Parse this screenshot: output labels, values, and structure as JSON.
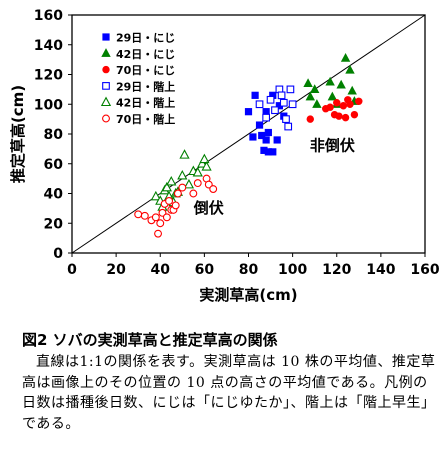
{
  "chart_data": {
    "type": "scatter",
    "xlabel": "実測草高(cm)",
    "ylabel": "推定草高(cm)",
    "xlim": [
      0,
      160
    ],
    "ylim": [
      0,
      160
    ],
    "xticks": [
      0,
      20,
      40,
      60,
      80,
      100,
      120,
      140,
      160
    ],
    "yticks": [
      0,
      20,
      40,
      60,
      80,
      100,
      120,
      140,
      160
    ],
    "grid": false,
    "legend_position": "top-left",
    "reference_line": {
      "slope": 1,
      "intercept": 0
    },
    "annotations": [
      {
        "text": "非倒伏",
        "x": 118,
        "y": 69
      },
      {
        "text": "倒伏",
        "x": 62,
        "y": 27
      }
    ],
    "series": [
      {
        "name": "29日・にじ",
        "marker": "square",
        "filled": true,
        "color": "#0000ff",
        "points": [
          [
            80,
            95
          ],
          [
            82,
            78
          ],
          [
            83,
            106
          ],
          [
            85,
            86
          ],
          [
            86,
            79
          ],
          [
            87,
            69
          ],
          [
            88,
            95
          ],
          [
            88,
            76
          ],
          [
            89,
            81
          ],
          [
            89,
            68
          ],
          [
            91,
            68
          ],
          [
            91,
            106
          ],
          [
            93,
            76
          ],
          [
            94,
            99
          ],
          [
            96,
            92
          ]
        ]
      },
      {
        "name": "42日・にじ",
        "marker": "triangle",
        "filled": true,
        "color": "#008000",
        "points": [
          [
            107,
            114
          ],
          [
            108,
            105
          ],
          [
            110,
            110
          ],
          [
            111,
            100
          ],
          [
            117,
            115
          ],
          [
            118,
            105
          ],
          [
            120,
            100
          ],
          [
            122,
            113
          ],
          [
            124,
            131
          ],
          [
            126,
            123
          ],
          [
            127,
            109
          ],
          [
            128,
            102
          ]
        ]
      },
      {
        "name": "70日・にじ",
        "marker": "circle",
        "filled": true,
        "color": "#ff0000",
        "points": [
          [
            108,
            90
          ],
          [
            115,
            97
          ],
          [
            117,
            98
          ],
          [
            119,
            93
          ],
          [
            120,
            101
          ],
          [
            121,
            92
          ],
          [
            123,
            99
          ],
          [
            124,
            91
          ],
          [
            125,
            103
          ],
          [
            126,
            100
          ],
          [
            128,
            93
          ],
          [
            130,
            102
          ]
        ]
      },
      {
        "name": "29日・階上",
        "marker": "square",
        "filled": false,
        "color": "#0000ff",
        "points": [
          [
            85,
            100
          ],
          [
            88,
            91
          ],
          [
            90,
            103
          ],
          [
            92,
            96
          ],
          [
            94,
            110
          ],
          [
            95,
            106
          ],
          [
            96,
            101
          ],
          [
            97,
            90
          ],
          [
            98,
            85
          ],
          [
            99,
            110
          ],
          [
            100,
            100
          ]
        ]
      },
      {
        "name": "42日・階上",
        "marker": "triangle",
        "filled": false,
        "color": "#008000",
        "points": [
          [
            38,
            38
          ],
          [
            40,
            35
          ],
          [
            41,
            31
          ],
          [
            42,
            42
          ],
          [
            43,
            44
          ],
          [
            44,
            38
          ],
          [
            45,
            48
          ],
          [
            46,
            34
          ],
          [
            47,
            40
          ],
          [
            48,
            41
          ],
          [
            50,
            52
          ],
          [
            51,
            66
          ],
          [
            53,
            46
          ],
          [
            55,
            55
          ],
          [
            57,
            54
          ],
          [
            59,
            60
          ],
          [
            60,
            63
          ],
          [
            61,
            58
          ]
        ]
      },
      {
        "name": "70日・階上",
        "marker": "circle",
        "filled": false,
        "color": "#ff0000",
        "points": [
          [
            30,
            26
          ],
          [
            33,
            25
          ],
          [
            36,
            22
          ],
          [
            38,
            24
          ],
          [
            39,
            13
          ],
          [
            40,
            20
          ],
          [
            41,
            27
          ],
          [
            42,
            33
          ],
          [
            43,
            24
          ],
          [
            44,
            35
          ],
          [
            45,
            29
          ],
          [
            46,
            29
          ],
          [
            47,
            32
          ],
          [
            48,
            40
          ],
          [
            50,
            44
          ],
          [
            55,
            40
          ],
          [
            57,
            47
          ],
          [
            61,
            50
          ],
          [
            62,
            46
          ],
          [
            64,
            43
          ]
        ]
      }
    ]
  },
  "caption": {
    "title": "図2 ソバの実測草高と推定草高の関係",
    "body": "直線は1:1の関係を表す。実測草高は 10 株の平均値、推定草高は画像上のその位置の 10 点の高さの平均値である。凡例の日数は播種後日数、にじは「にじゆたか」、階上は「階上早生」である。"
  }
}
